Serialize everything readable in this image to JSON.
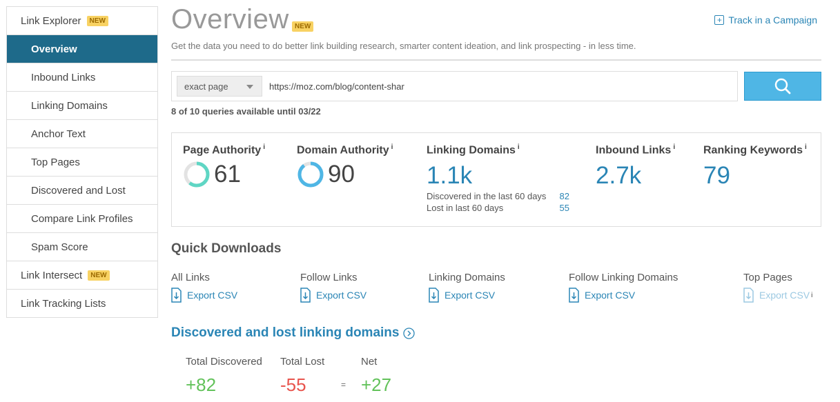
{
  "sidebar": {
    "items": [
      {
        "label": "Link Explorer",
        "badge": "NEW"
      },
      {
        "label": "Overview"
      },
      {
        "label": "Inbound Links"
      },
      {
        "label": "Linking Domains"
      },
      {
        "label": "Anchor Text"
      },
      {
        "label": "Top Pages"
      },
      {
        "label": "Discovered and Lost"
      },
      {
        "label": "Compare Link Profiles"
      },
      {
        "label": "Spam Score"
      },
      {
        "label": "Link Intersect",
        "badge": "NEW"
      },
      {
        "label": "Link Tracking Lists"
      }
    ]
  },
  "header": {
    "title": "Overview",
    "badge": "NEW",
    "subtitle": "Get the data you need to do better link building research, smarter content ideation, and link prospecting - in less time.",
    "track_label": "Track in a Campaign",
    "track_icon": "plus-square-icon"
  },
  "search": {
    "scope": "exact page",
    "url_value": "https://moz.com/blog/content-shar",
    "button_icon": "search-icon",
    "quota": "8 of 10 queries available until 03/22"
  },
  "metrics": {
    "page_authority": {
      "label": "Page Authority",
      "info": "i",
      "value": "61",
      "ring_color": "#5fd6c4"
    },
    "domain_authority": {
      "label": "Domain Authority",
      "info": "i",
      "value": "90",
      "ring_color": "#4fb6e5"
    },
    "linking_domains": {
      "label": "Linking Domains",
      "info": "i",
      "value": "1.1k",
      "discovered_label": "Discovered in the last 60 days",
      "discovered_value": "82",
      "lost_label": "Lost in last 60 days",
      "lost_value": "55"
    },
    "inbound_links": {
      "label": "Inbound Links",
      "info": "i",
      "value": "2.7k"
    },
    "ranking_keywords": {
      "label": "Ranking Keywords",
      "info": "i",
      "value": "79"
    }
  },
  "quick_downloads": {
    "title": "Quick Downloads",
    "items": [
      {
        "label": "All Links",
        "link": "Export CSV"
      },
      {
        "label": "Follow Links",
        "link": "Export CSV"
      },
      {
        "label": "Linking Domains",
        "link": "Export CSV"
      },
      {
        "label": "Follow Linking Domains",
        "link": "Export CSV"
      },
      {
        "label": "Top Pages",
        "link": "Export CSV",
        "info": "i"
      }
    ]
  },
  "discovered_lost": {
    "title": "Discovered and lost linking domains",
    "total_discovered_label": "Total Discovered",
    "total_discovered_value": "+82",
    "total_lost_label": "Total Lost",
    "total_lost_value": "-55",
    "equals": "=",
    "net_label": "Net",
    "net_value": "+27"
  },
  "colors": {
    "active_nav": "#1e6a8a",
    "accent_blue": "#2a85b5",
    "search_button": "#4fb6e5",
    "badge": "#f8d263",
    "positive": "#62c25a",
    "negative": "#e8554e"
  }
}
